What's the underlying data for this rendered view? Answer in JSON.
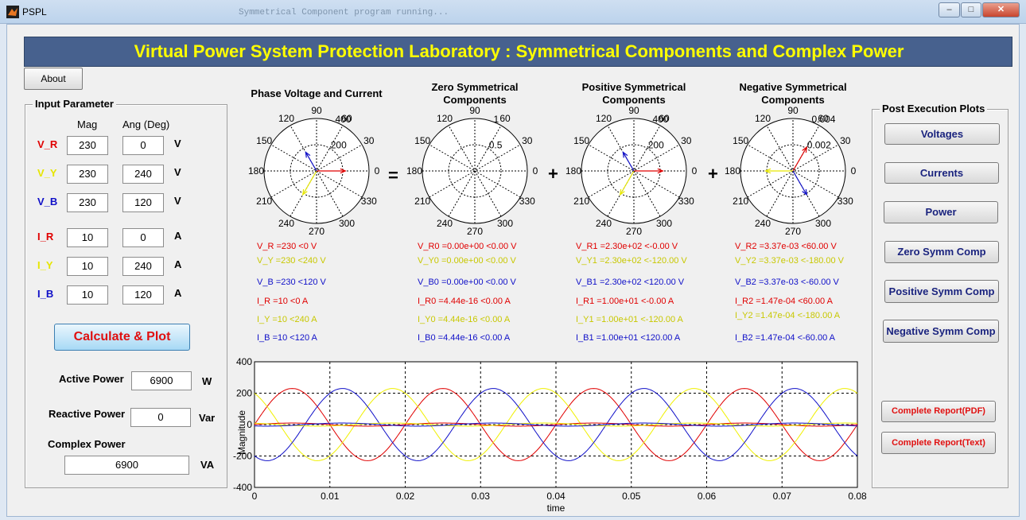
{
  "window": {
    "title": "PSPL",
    "background_text": "Symmetrical Component program running...",
    "minimize_label": "–",
    "maximize_label": "□",
    "close_label": "✕"
  },
  "banner": {
    "title": "Virtual Power System Protection Laboratory : Symmetrical Components and Complex Power"
  },
  "about_button": "About",
  "input_panel": {
    "title": "Input Parameter",
    "col_mag": "Mag",
    "col_ang": "Ang (Deg)",
    "rows": [
      {
        "label": "V_R",
        "mag": "230",
        "ang": "0",
        "unit": "V",
        "color": "#e00000"
      },
      {
        "label": "V_Y",
        "mag": "230",
        "ang": "240",
        "unit": "V",
        "color": "#e6e600"
      },
      {
        "label": "V_B",
        "mag": "230",
        "ang": "120",
        "unit": "V",
        "color": "#1010c8"
      },
      {
        "label": "I_R",
        "mag": "10",
        "ang": "0",
        "unit": "A",
        "color": "#e00000"
      },
      {
        "label": "I_Y",
        "mag": "10",
        "ang": "240",
        "unit": "A",
        "color": "#e6e600"
      },
      {
        "label": "I_B",
        "mag": "10",
        "ang": "120",
        "unit": "A",
        "color": "#1010c8"
      }
    ],
    "calc_button": "Calculate & Plot",
    "active_power": {
      "label": "Active Power",
      "value": "6900",
      "unit": "W"
    },
    "reactive_power": {
      "label": "Reactive Power",
      "value": "0",
      "unit": "Var"
    },
    "complex_power": {
      "label": "Complex Power",
      "value": "6900",
      "unit": "VA"
    }
  },
  "operators": {
    "equals": "=",
    "plus": "+"
  },
  "polar_plots": [
    {
      "title": [
        "Phase Voltage and Current",
        ""
      ],
      "r_labels": [
        "400",
        "200"
      ],
      "vectors": [
        {
          "angle": 0,
          "mag": 1.0,
          "color": "#e00000"
        },
        {
          "angle": 240,
          "mag": 0.95,
          "color": "#e6e600"
        },
        {
          "angle": 120,
          "mag": 0.75,
          "color": "#1010c8"
        }
      ]
    },
    {
      "title": [
        "Zero Symmetrical",
        "Components"
      ],
      "r_labels": [
        "1",
        "0.5"
      ],
      "vectors": []
    },
    {
      "title": [
        "Positive Symmetrical",
        "Components"
      ],
      "r_labels": [
        "400",
        "200"
      ],
      "vectors": [
        {
          "angle": 0,
          "mag": 1.0,
          "color": "#e00000"
        },
        {
          "angle": 240,
          "mag": 0.95,
          "color": "#e6e600"
        },
        {
          "angle": 120,
          "mag": 0.75,
          "color": "#1010c8"
        }
      ]
    },
    {
      "title": [
        "Negative Symmetrical",
        "Components"
      ],
      "r_labels": [
        "0.004",
        "0.002"
      ],
      "vectors": [
        {
          "angle": 60,
          "mag": 0.95,
          "color": "#e00000"
        },
        {
          "angle": 180,
          "mag": 0.95,
          "color": "#e6e600"
        },
        {
          "angle": 300,
          "mag": 0.95,
          "color": "#1010c8"
        }
      ]
    }
  ],
  "polar_angle_labels": [
    "0",
    "30",
    "60",
    "90",
    "120",
    "150",
    "180",
    "210",
    "240",
    "270",
    "300",
    "330"
  ],
  "results": [
    [
      "V_R =230 <0 V",
      "V_Y =230 <240 V",
      "V_B =230 <120 V",
      "I_R =10 <0 A",
      "I_Y =10 <240 A",
      "I_B =10 <120 A"
    ],
    [
      "V_R0 =0.00e+00 <0.00 V",
      "V_Y0 =0.00e+00 <0.00 V",
      "V_B0 =0.00e+00 <0.00 V",
      "I_R0 =4.44e-16 <0.00 A",
      "I_Y0 =4.44e-16 <0.00 A",
      "I_B0 =4.44e-16 <0.00 A"
    ],
    [
      "V_R1 =2.30e+02 <-0.00 V",
      "V_Y1 =2.30e+02 <-120.00 V",
      "V_B1 =2.30e+02 <120.00 V",
      "I_R1 =1.00e+01 <-0.00 A",
      "I_Y1 =1.00e+01 <-120.00 A",
      "I_B1 =1.00e+01 <120.00 A"
    ],
    [
      "V_R2 =3.37e-03 <60.00 V",
      "V_Y2 =3.37e-03 <-180.00 V",
      "V_B2 =3.37e-03 <-60.00 V",
      "I_R2 =1.47e-04 <60.00 A",
      "I_Y2 =1.47e-04 <-180.00 A",
      "I_B2 =1.47e-04 <-60.00 A"
    ]
  ],
  "post_panel": {
    "title": "Post Execution Plots",
    "buttons": [
      "Voltages",
      "Currents",
      "Power",
      "Zero Symm Comp",
      "Positive Symm Comp",
      "Negative Symm Comp"
    ],
    "report_pdf": "Complete Report(PDF)",
    "report_text": "Complete Report(Text)"
  },
  "chart_data": {
    "type": "line",
    "title": "",
    "xlabel": "time",
    "ylabel": "Magnitude",
    "xlim": [
      0,
      0.08
    ],
    "ylim": [
      -400,
      400
    ],
    "x_ticks": [
      "0",
      "0.01",
      "0.02",
      "0.03",
      "0.04",
      "0.05",
      "0.06",
      "0.07",
      "0.08"
    ],
    "y_ticks": [
      "400",
      "200",
      "0",
      "-200",
      "-400"
    ],
    "grid": true,
    "frequency_hz": 50,
    "series": [
      {
        "amplitude": 230,
        "phase_deg": 0,
        "color": "#e00000"
      },
      {
        "amplitude": 230,
        "phase_deg": 240,
        "color": "#f0f000"
      },
      {
        "amplitude": 230,
        "phase_deg": 120,
        "color": "#1010c8"
      },
      {
        "amplitude": 10,
        "phase_deg": 0,
        "color": "#e00000"
      },
      {
        "amplitude": 10,
        "phase_deg": 240,
        "color": "#f0f000"
      },
      {
        "amplitude": 10,
        "phase_deg": 120,
        "color": "#1010c8"
      }
    ]
  }
}
